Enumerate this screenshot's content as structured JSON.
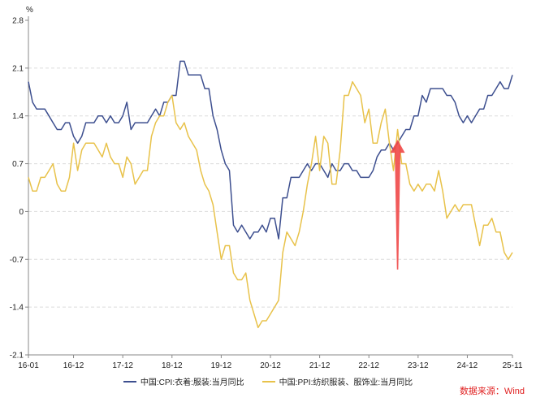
{
  "chart_data": {
    "type": "line",
    "title": "",
    "unit_label": "%",
    "xlabel": "",
    "ylabel": "%",
    "ylim": [
      -2.1,
      2.8
    ],
    "yticks": [
      2.8,
      2.1,
      1.4,
      0.7,
      0,
      -0.7,
      -1.4,
      -2.1
    ],
    "ytick_labels": [
      "2.8",
      "2.1",
      "1.4",
      "0.7",
      "0",
      "-0.7",
      "-1.4",
      "-2.1"
    ],
    "x_start": "2016-01",
    "x_end": "2025-11",
    "xtick_labels": [
      "16-01",
      "16-12",
      "17-12",
      "18-12",
      "19-12",
      "20-12",
      "21-12",
      "22-12",
      "23-12",
      "24-12",
      "25-11"
    ],
    "xtick_months": [
      0,
      11,
      23,
      35,
      47,
      59,
      71,
      83,
      95,
      107,
      118
    ],
    "grid": "horizontal-dashed",
    "legend_position": "bottom",
    "series": [
      {
        "name": "中国:CPI:衣着:服装:当月同比",
        "color": "#3d4f8f",
        "values": [
          1.9,
          1.6,
          1.5,
          1.5,
          1.5,
          1.4,
          1.3,
          1.2,
          1.2,
          1.3,
          1.3,
          1.1,
          1.0,
          1.1,
          1.3,
          1.3,
          1.3,
          1.4,
          1.4,
          1.3,
          1.4,
          1.3,
          1.3,
          1.4,
          1.6,
          1.2,
          1.3,
          1.3,
          1.3,
          1.3,
          1.4,
          1.5,
          1.4,
          1.6,
          1.6,
          1.7,
          1.7,
          2.2,
          2.2,
          2.0,
          2.0,
          2.0,
          2.0,
          1.8,
          1.8,
          1.4,
          1.2,
          0.9,
          0.7,
          0.6,
          -0.2,
          -0.3,
          -0.2,
          -0.3,
          -0.4,
          -0.3,
          -0.3,
          -0.2,
          -0.3,
          -0.1,
          -0.1,
          -0.4,
          0.2,
          0.2,
          0.5,
          0.5,
          0.5,
          0.6,
          0.7,
          0.6,
          0.7,
          0.7,
          0.6,
          0.5,
          0.7,
          0.6,
          0.6,
          0.7,
          0.7,
          0.6,
          0.6,
          0.5,
          0.5,
          0.5,
          0.6,
          0.8,
          0.9,
          0.9,
          1.0,
          0.9,
          1.0,
          1.1,
          1.2,
          1.2,
          1.4,
          1.4,
          1.7,
          1.6,
          1.8,
          1.8,
          1.8,
          1.8,
          1.7,
          1.7,
          1.6,
          1.4,
          1.3,
          1.4,
          1.3,
          1.4,
          1.5,
          1.5,
          1.7,
          1.7,
          1.8,
          1.9,
          1.8,
          1.8,
          2.0
        ]
      },
      {
        "name": "中国:PPI:纺织服装、服饰业:当月同比",
        "color": "#e8c24a",
        "values": [
          0.5,
          0.3,
          0.3,
          0.5,
          0.5,
          0.6,
          0.7,
          0.4,
          0.3,
          0.3,
          0.5,
          1.0,
          0.6,
          0.9,
          1.0,
          1.0,
          1.0,
          0.9,
          0.8,
          1.0,
          0.8,
          0.7,
          0.7,
          0.5,
          0.8,
          0.7,
          0.4,
          0.5,
          0.6,
          0.6,
          1.1,
          1.3,
          1.4,
          1.4,
          1.6,
          1.7,
          1.3,
          1.2,
          1.3,
          1.1,
          1.0,
          0.9,
          0.6,
          0.4,
          0.3,
          0.1,
          -0.3,
          -0.7,
          -0.5,
          -0.5,
          -0.9,
          -1.0,
          -1.0,
          -0.9,
          -1.3,
          -1.5,
          -1.7,
          -1.6,
          -1.6,
          -1.5,
          -1.4,
          -1.3,
          -0.6,
          -0.3,
          -0.4,
          -0.5,
          -0.3,
          0.0,
          0.4,
          0.7,
          1.1,
          0.6,
          1.1,
          1.0,
          0.4,
          0.4,
          0.9,
          1.7,
          1.7,
          1.9,
          1.8,
          1.7,
          1.3,
          1.5,
          1.0,
          1.0,
          1.3,
          1.5,
          1.0,
          0.6,
          1.2,
          0.7,
          0.7,
          0.4,
          0.3,
          0.4,
          0.3,
          0.4,
          0.4,
          0.3,
          0.6,
          0.3,
          -0.1,
          0.0,
          0.1,
          0.0,
          0.1,
          0.1,
          0.1,
          -0.2,
          -0.5,
          -0.2,
          -0.2,
          -0.1,
          -0.3,
          -0.3,
          -0.6,
          -0.7,
          -0.6
        ]
      }
    ],
    "annotations": [
      {
        "type": "arrow",
        "color": "#f04848",
        "month": 90,
        "from_value": -0.85,
        "to_value": 1.05
      }
    ]
  },
  "source": "数据来源：Wind"
}
